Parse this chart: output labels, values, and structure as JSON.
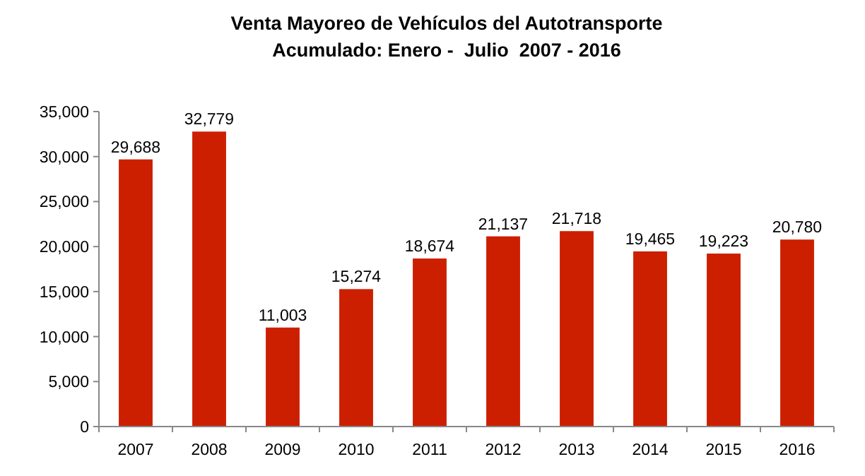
{
  "chart_data": {
    "type": "bar",
    "title": "Venta Mayoreo de Vehículos del Autotransporte",
    "subtitle": "Acumulado: Enero -  Julio  2007 - 2016",
    "categories": [
      "2007",
      "2008",
      "2009",
      "2010",
      "2011",
      "2012",
      "2013",
      "2014",
      "2015",
      "2016"
    ],
    "values": [
      29688,
      32779,
      11003,
      15274,
      18674,
      21137,
      21718,
      19465,
      19223,
      20780
    ],
    "color": "#cc1f00",
    "ylim": [
      0,
      35000
    ],
    "yticks": [
      {
        "value": 0,
        "label": "0"
      },
      {
        "value": 5000,
        "label": "5,000"
      },
      {
        "value": 10000,
        "label": "10,000"
      },
      {
        "value": 15000,
        "label": "15,000"
      },
      {
        "value": 20000,
        "label": "20,000"
      },
      {
        "value": 25000,
        "label": "25,000"
      },
      {
        "value": 30000,
        "label": "30,000"
      },
      {
        "value": 35000,
        "label": "35,000"
      }
    ],
    "value_labels": [
      "29,688",
      "32,779",
      "11,003",
      "15,274",
      "18,674",
      "21,137",
      "21,718",
      "19,465",
      "19,223",
      "20,780"
    ],
    "grid": false
  }
}
